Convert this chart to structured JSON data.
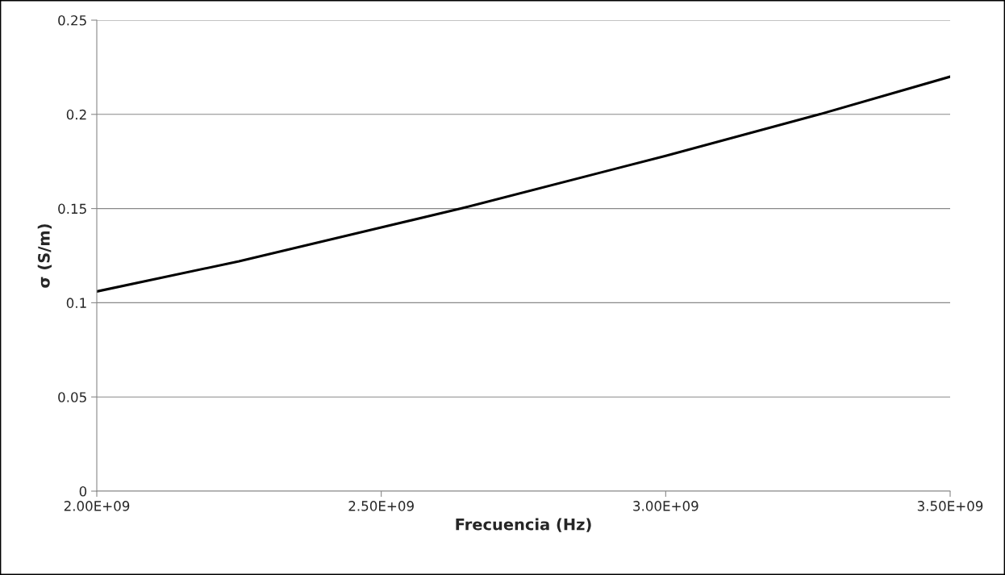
{
  "chart_data": {
    "type": "line",
    "xlabel": "Frecuencia (Hz)",
    "ylabel": "σ (S/m)",
    "x": [
      2000000000,
      2250000000,
      2500000000,
      2640000000,
      3000000000,
      3270000000,
      3500000000
    ],
    "series": [
      {
        "color": "#000000",
        "values": [
          0.106,
          0.122,
          0.14,
          0.15,
          0.178,
          0.2,
          0.22
        ]
      }
    ],
    "xlim": [
      2000000000,
      3500000000
    ],
    "xticks": [
      {
        "value": 2000000000,
        "label": "2.00E+09"
      },
      {
        "value": 2500000000,
        "label": "2.50E+09"
      },
      {
        "value": 3000000000,
        "label": "3.00E+09"
      },
      {
        "value": 3500000000,
        "label": "3.50E+09"
      }
    ],
    "ylim": [
      0,
      0.25
    ],
    "yticks": [
      0,
      0.05,
      0.1,
      0.15,
      0.2,
      0.25
    ],
    "grid": "y",
    "marker": "none",
    "line_style": "solid",
    "legend": false
  }
}
